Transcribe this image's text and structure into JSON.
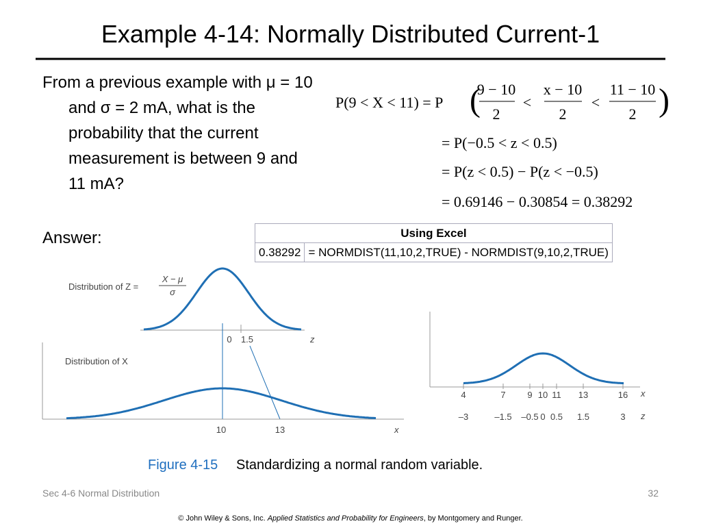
{
  "title": "Example 4-14: Normally Distributed Current-1",
  "question": "From a previous example with μ = 10 and σ = 2 mA, what is the probability that the current measurement is between 9 and 11 mA?",
  "answer_label": "Answer:",
  "equations": {
    "line1": {
      "lhs": "P(9 < X < 11) = P",
      "fractions": [
        {
          "num": "9 − 10",
          "den": "2"
        },
        {
          "num": "x − 10",
          "den": "2"
        },
        {
          "num": "11 − 10",
          "den": "2"
        }
      ],
      "operators": [
        "<",
        "<"
      ]
    },
    "line2": "= P(−0.5 < z < 0.5)",
    "line3": "= P(z < 0.5) − P(z < −0.5)",
    "line4": "= 0.69146 − 0.30854 = 0.38292"
  },
  "table": {
    "header": "Using Excel",
    "rows": [
      [
        "0.38292",
        "= NORMDIST(11,10,2,TRUE) - NORMDIST(9,10,2,TRUE)"
      ]
    ]
  },
  "figure_left": {
    "z_label": "Distribution of Z =",
    "z_num": "X − μ",
    "z_den": "σ",
    "z_ticks": [
      "0",
      "1.5"
    ],
    "z_axis": "z",
    "x_label": "Distribution of X",
    "x_ticks": [
      "10",
      "13"
    ],
    "x_axis": "x"
  },
  "figure_right": {
    "x_ticks": [
      "4",
      "7",
      "9",
      "10",
      "11",
      "13",
      "16"
    ],
    "z_ticks": [
      "–3",
      "–1.5",
      "–0.5",
      "0",
      "0.5",
      "1.5",
      "3"
    ],
    "x_axis": "x",
    "z_axis": "z"
  },
  "caption": {
    "label": "Figure 4-15",
    "text": "Standardizing a normal random variable."
  },
  "footer": {
    "section": "Sec 4-6 Normal Distribution",
    "page": "32",
    "copyright": "© John Wiley & Sons, Inc.",
    "book": "Applied Statistics and Probability for Engineers",
    "authors": ", by Montgomery and Runger."
  }
}
